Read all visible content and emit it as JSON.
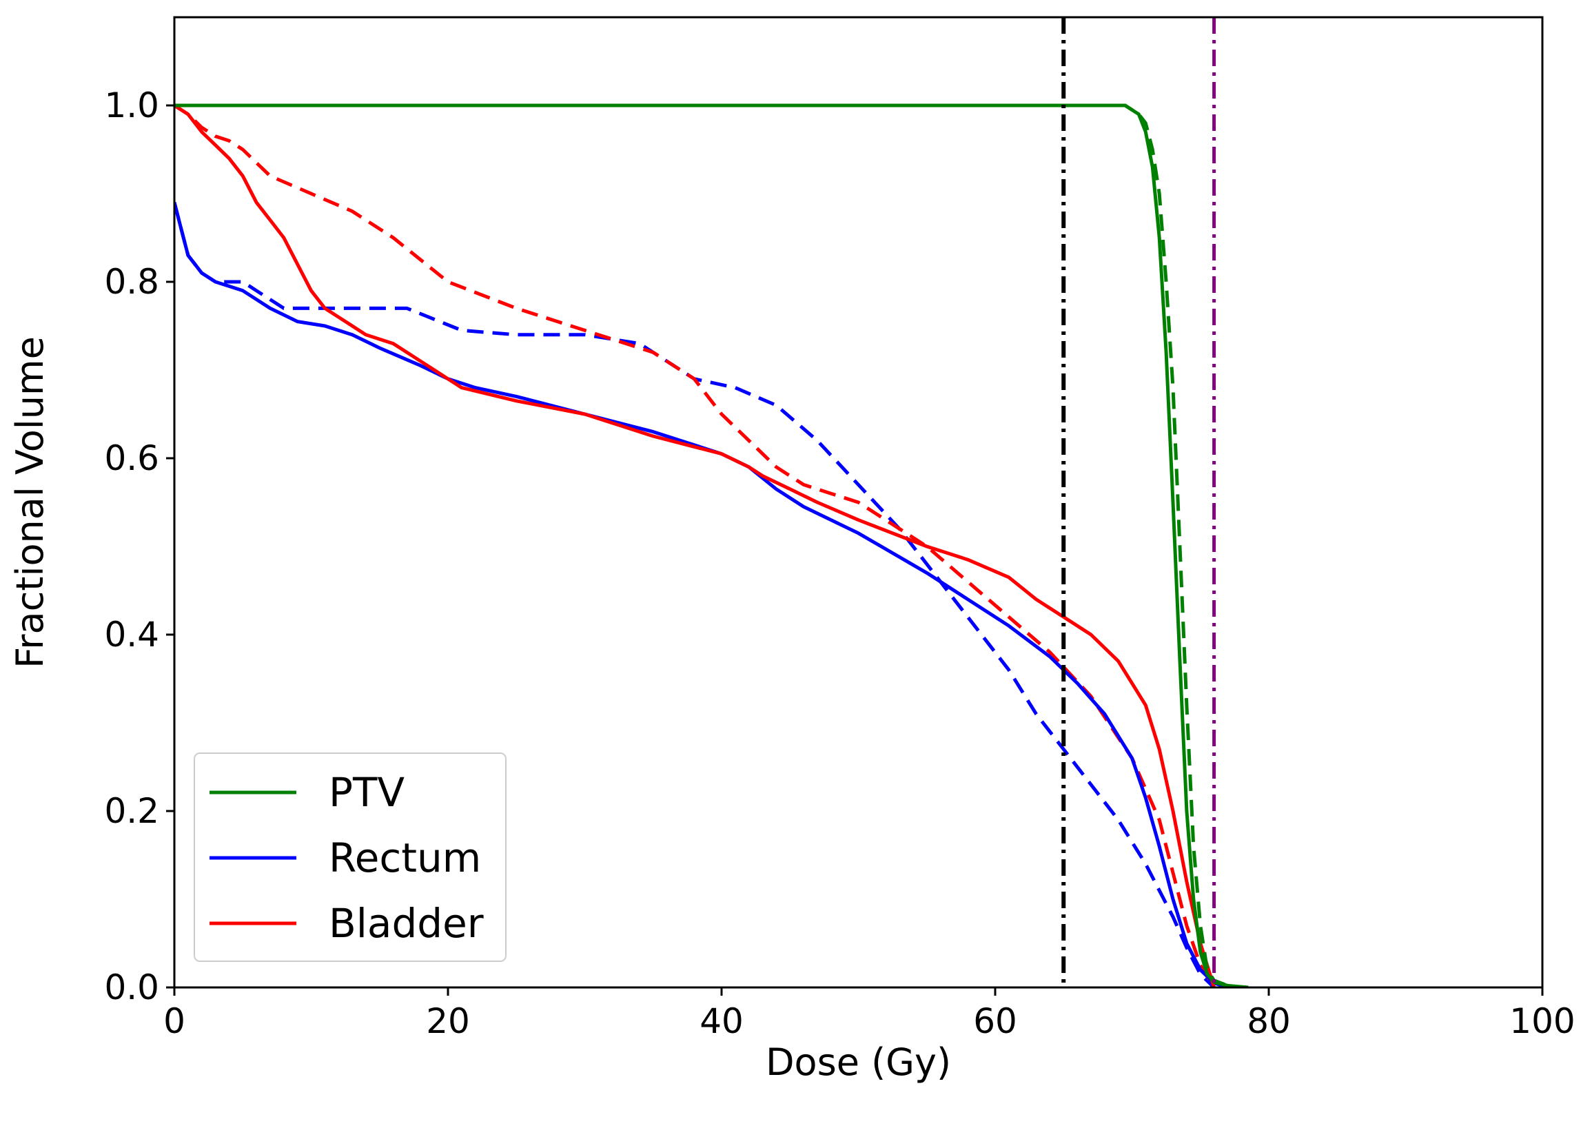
{
  "chart_data": {
    "type": "line",
    "title": "",
    "xlabel": "Dose (Gy)",
    "ylabel": "Fractional Volume",
    "xlim": [
      0,
      100
    ],
    "ylim": [
      0,
      1.1
    ],
    "xticks": [
      0,
      20,
      40,
      60,
      80,
      100
    ],
    "xtick_labels": [
      "0",
      "20",
      "40",
      "60",
      "80",
      "100"
    ],
    "yticks": [
      0.0,
      0.2,
      0.4,
      0.6,
      0.8,
      1.0
    ],
    "ytick_labels": [
      "0.0",
      "0.2",
      "0.4",
      "0.6",
      "0.8",
      "1.0"
    ],
    "grid": false,
    "legend_position": "bottom-left",
    "legend": [
      {
        "label": "PTV",
        "color": "#008000"
      },
      {
        "label": "Rectum",
        "color": "#0000ff"
      },
      {
        "label": "Bladder",
        "color": "#ff0000"
      }
    ],
    "series": [
      {
        "name": "PTV",
        "style": "solid",
        "color": "#008000",
        "x": [
          0,
          20,
          40,
          60,
          68,
          69.5,
          70.5,
          71,
          71.5,
          72,
          72.5,
          73,
          73.5,
          74,
          74.5,
          75,
          75.5,
          76,
          77,
          78.5
        ],
        "y": [
          1.0,
          1.0,
          1.0,
          1.0,
          1.0,
          1.0,
          0.99,
          0.97,
          0.93,
          0.85,
          0.72,
          0.55,
          0.37,
          0.2,
          0.1,
          0.04,
          0.015,
          0.006,
          0.002,
          0.0
        ]
      },
      {
        "name": "PTV",
        "style": "dashed",
        "color": "#008000",
        "x": [
          0,
          20,
          40,
          60,
          68,
          69.5,
          70.5,
          71,
          71.5,
          72,
          72.5,
          73,
          73.5,
          74,
          74.5,
          75,
          75.5,
          76,
          77,
          78
        ],
        "y": [
          1.0,
          1.0,
          1.0,
          1.0,
          1.0,
          1.0,
          0.99,
          0.98,
          0.95,
          0.9,
          0.8,
          0.68,
          0.5,
          0.32,
          0.16,
          0.07,
          0.02,
          0.008,
          0.002,
          0.0
        ]
      },
      {
        "name": "Rectum",
        "style": "solid",
        "color": "#0000ff",
        "x": [
          0,
          0.5,
          1,
          2,
          3,
          5,
          7,
          9,
          11,
          13,
          15,
          18,
          20,
          22,
          25,
          30,
          35,
          40,
          42,
          44,
          46,
          50,
          55,
          58,
          61,
          64,
          66,
          68,
          70,
          71,
          72,
          73,
          74,
          75,
          76,
          77
        ],
        "y": [
          0.89,
          0.86,
          0.83,
          0.81,
          0.8,
          0.79,
          0.77,
          0.755,
          0.75,
          0.74,
          0.725,
          0.705,
          0.69,
          0.68,
          0.67,
          0.65,
          0.63,
          0.605,
          0.59,
          0.565,
          0.545,
          0.515,
          0.47,
          0.44,
          0.41,
          0.375,
          0.345,
          0.31,
          0.26,
          0.215,
          0.16,
          0.1,
          0.05,
          0.02,
          0.005,
          0.0
        ]
      },
      {
        "name": "Rectum",
        "style": "dashed",
        "color": "#0000ff",
        "x": [
          0,
          0.5,
          1,
          2,
          3,
          5,
          6,
          8,
          10,
          13,
          17,
          21,
          25,
          30,
          34,
          38,
          41,
          44,
          47,
          50,
          53,
          55,
          57,
          59,
          61,
          63,
          65,
          67,
          69,
          71,
          73,
          74,
          75,
          76
        ],
        "y": [
          0.89,
          0.86,
          0.83,
          0.81,
          0.8,
          0.8,
          0.79,
          0.77,
          0.77,
          0.77,
          0.77,
          0.745,
          0.74,
          0.74,
          0.73,
          0.69,
          0.68,
          0.66,
          0.62,
          0.57,
          0.52,
          0.48,
          0.44,
          0.4,
          0.36,
          0.31,
          0.27,
          0.23,
          0.19,
          0.14,
          0.08,
          0.045,
          0.015,
          0.0
        ]
      },
      {
        "name": "Bladder",
        "style": "solid",
        "color": "#ff0000",
        "x": [
          0,
          1,
          2,
          3,
          4,
          5,
          6,
          7,
          8,
          9,
          10,
          11,
          12,
          13,
          14,
          15,
          16,
          18,
          20,
          21,
          25,
          30,
          35,
          40,
          42,
          43,
          45,
          47,
          50,
          55,
          58,
          61,
          63,
          65,
          67,
          69,
          71,
          72,
          73,
          74,
          75,
          76
        ],
        "y": [
          1.0,
          0.99,
          0.97,
          0.955,
          0.94,
          0.92,
          0.89,
          0.87,
          0.85,
          0.82,
          0.79,
          0.77,
          0.76,
          0.75,
          0.74,
          0.735,
          0.73,
          0.71,
          0.69,
          0.68,
          0.665,
          0.65,
          0.625,
          0.605,
          0.59,
          0.58,
          0.565,
          0.55,
          0.53,
          0.5,
          0.485,
          0.465,
          0.44,
          0.42,
          0.4,
          0.37,
          0.32,
          0.27,
          0.2,
          0.12,
          0.05,
          0.0
        ]
      },
      {
        "name": "Bladder",
        "style": "dashed",
        "color": "#ff0000",
        "x": [
          0,
          1,
          2,
          3,
          4,
          5,
          7,
          10,
          13,
          16,
          20,
          25,
          30,
          35,
          38,
          40,
          42,
          44,
          46,
          50,
          55,
          58,
          61,
          64,
          67,
          70,
          72,
          73,
          74,
          75,
          76
        ],
        "y": [
          1.0,
          0.99,
          0.975,
          0.965,
          0.96,
          0.95,
          0.92,
          0.9,
          0.88,
          0.85,
          0.8,
          0.77,
          0.745,
          0.72,
          0.69,
          0.65,
          0.62,
          0.59,
          0.57,
          0.55,
          0.5,
          0.46,
          0.42,
          0.38,
          0.33,
          0.26,
          0.19,
          0.13,
          0.07,
          0.025,
          0.0
        ]
      }
    ],
    "reference_lines": [
      {
        "x": 65,
        "style": "dashdot",
        "color": "#000000"
      },
      {
        "x": 76,
        "style": "dashdot",
        "color": "#800080"
      }
    ]
  }
}
